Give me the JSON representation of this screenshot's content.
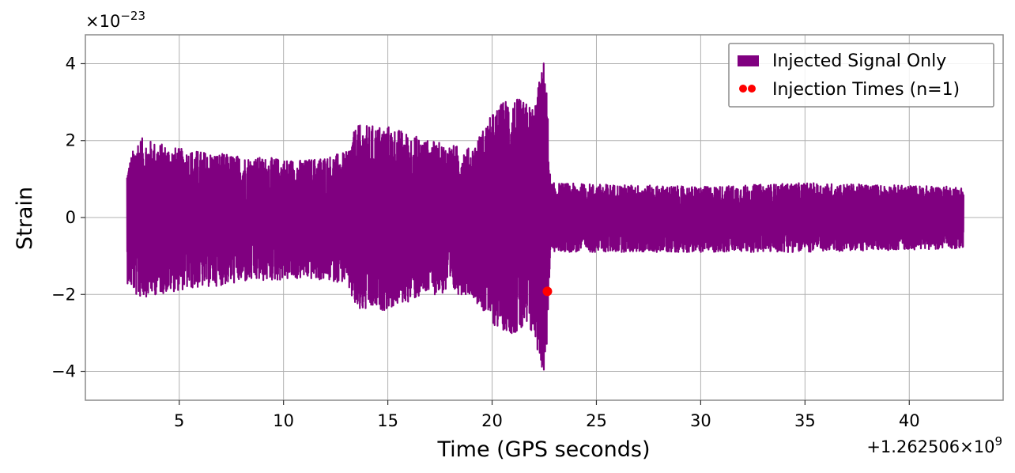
{
  "chart_data": {
    "type": "line",
    "title": "",
    "xlabel": "Time (GPS seconds)",
    "ylabel": "Strain",
    "x_offset_label": "+1.262506×10",
    "x_offset_exponent": "9",
    "y_scale_label": "×10",
    "y_scale_exponent": "−23",
    "xlim": [
      0.5,
      44.5
    ],
    "ylim": [
      -4.75,
      4.75
    ],
    "xticks": [
      5,
      10,
      15,
      20,
      25,
      30,
      35,
      40
    ],
    "xtick_labels": [
      "5",
      "10",
      "15",
      "20",
      "25",
      "30",
      "35",
      "40"
    ],
    "yticks": [
      -4,
      -2,
      0,
      2,
      4
    ],
    "ytick_labels": [
      "−4",
      "−2",
      "0",
      "2",
      "4"
    ],
    "grid": true,
    "legend_position": "top-right",
    "series": [
      {
        "name": "Injected Signal Only",
        "color": "#800080",
        "kind": "line",
        "x_range": [
          2.5,
          42.6
        ],
        "envelope": [
          {
            "x": 2.5,
            "upper": 1.3,
            "lower": -1.7
          },
          {
            "x": 3.0,
            "upper": 2.1,
            "lower": -2.1
          },
          {
            "x": 5.0,
            "upper": 1.8,
            "lower": -1.9
          },
          {
            "x": 8.0,
            "upper": 1.6,
            "lower": -1.7
          },
          {
            "x": 11.0,
            "upper": 1.5,
            "lower": -1.6
          },
          {
            "x": 13.0,
            "upper": 1.7,
            "lower": -1.7
          },
          {
            "x": 13.5,
            "upper": 2.4,
            "lower": -2.5
          },
          {
            "x": 15.0,
            "upper": 2.4,
            "lower": -2.4
          },
          {
            "x": 17.0,
            "upper": 2.0,
            "lower": -2.0
          },
          {
            "x": 19.0,
            "upper": 1.8,
            "lower": -2.0
          },
          {
            "x": 20.0,
            "upper": 2.7,
            "lower": -2.8
          },
          {
            "x": 20.8,
            "upper": 3.2,
            "lower": -3.0
          },
          {
            "x": 22.0,
            "upper": 2.9,
            "lower": -3.1
          },
          {
            "x": 22.55,
            "upper": 4.3,
            "lower": -4.3
          },
          {
            "x": 22.8,
            "upper": 0.9,
            "lower": -0.9
          },
          {
            "x": 30.0,
            "upper": 0.8,
            "lower": -0.9
          },
          {
            "x": 35.0,
            "upper": 0.9,
            "lower": -0.9
          },
          {
            "x": 42.6,
            "upper": 0.8,
            "lower": -0.8
          }
        ]
      },
      {
        "name": "Injection Times (n=1)",
        "color": "#ff0000",
        "kind": "scatter",
        "points": [
          {
            "x": 22.65,
            "y": -1.92
          }
        ]
      }
    ]
  }
}
